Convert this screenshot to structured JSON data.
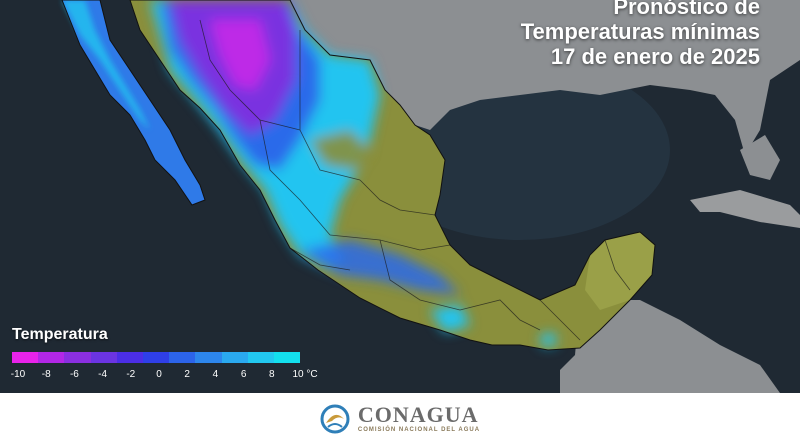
{
  "title": {
    "line1": "Pronóstico de",
    "line2": "Temperaturas mínimas",
    "line3": "17 de enero de 2025"
  },
  "legend": {
    "title": "Temperatura",
    "colors": [
      "#e823ea",
      "#b227e6",
      "#8a2fe0",
      "#6b34e2",
      "#4b2ee6",
      "#2f3fe8",
      "#2c64ea",
      "#2d86ec",
      "#2aa9ef",
      "#22c8f0",
      "#13e0ee"
    ],
    "ticks": [
      "-10",
      "-8",
      "-6",
      "-4",
      "-2",
      "0",
      "2",
      "4",
      "6",
      "8",
      "10 °C"
    ]
  },
  "footer": {
    "logo_name": "CONAGUA",
    "logo_subtitle": "COMISIÓN NACIONAL DEL AGUA",
    "logo_icon": "conagua-emblem-icon"
  },
  "map_colors": {
    "ocean": "#1f2933",
    "land_outside": "#8c8f92",
    "land_warm": "#8a8f3c",
    "cold_cyan": "#22c4f0",
    "cold_blue": "#2c6aea",
    "cold_purple": "#7a32e0",
    "cold_magenta": "#d02ae8",
    "borders": "#1a1a1a"
  }
}
